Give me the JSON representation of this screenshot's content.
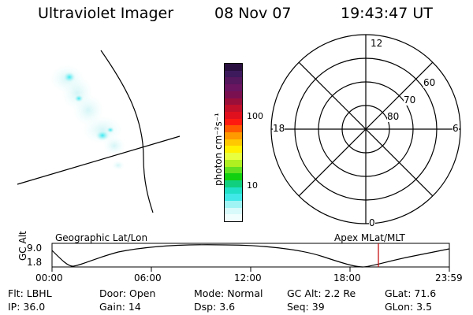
{
  "header": {
    "instrument": "Ultraviolet Imager",
    "date": "08 Nov 07",
    "time": "19:43:47 UT"
  },
  "colorbar": {
    "unit_label": "photon cm⁻²s⁻¹",
    "ticks": [
      "100",
      "10"
    ],
    "colors": [
      "#2a1040",
      "#3d1a5c",
      "#55175e",
      "#6b1560",
      "#7b1050",
      "#9a0f3a",
      "#c0102a",
      "#e0101e",
      "#ff1a10",
      "#ff5a00",
      "#ff9a00",
      "#ffc800",
      "#fff000",
      "#e8ff40",
      "#b0f020",
      "#60e020",
      "#10d010",
      "#10d080",
      "#20e0c8",
      "#40e8e8",
      "#a0f4f4",
      "#d8fafa",
      "#f0fefe"
    ]
  },
  "polar_plot": {
    "mlt_labels": [
      "12",
      "18",
      "6",
      "0"
    ],
    "lat_labels": [
      "60",
      "70",
      "80"
    ]
  },
  "altitude_plot": {
    "left_title": "Geographic Lat/Lon",
    "right_title": "Apex  MLat/MLT",
    "y_axis_label": "GC Alt",
    "y_ticks": [
      "9.0",
      "1.8"
    ],
    "x_ticks": [
      "00:00",
      "06:00",
      "12:00",
      "18:00",
      "23:59"
    ],
    "current_time_marker_color": "#c00000"
  },
  "footer": {
    "row1": [
      {
        "text": "Flt: LBHL"
      },
      {
        "text": "Door: Open"
      },
      {
        "text": "Mode: Normal"
      },
      {
        "text": "GC Alt: 2.2 Re"
      },
      {
        "text": "GLat:  71.6"
      }
    ],
    "row2": [
      {
        "text": "IP: 36.0"
      },
      {
        "text": "Gain: 14"
      },
      {
        "text": "Dsp:    3.6"
      },
      {
        "text": "Seq: 39"
      },
      {
        "text": "GLon:   3.5"
      }
    ]
  }
}
